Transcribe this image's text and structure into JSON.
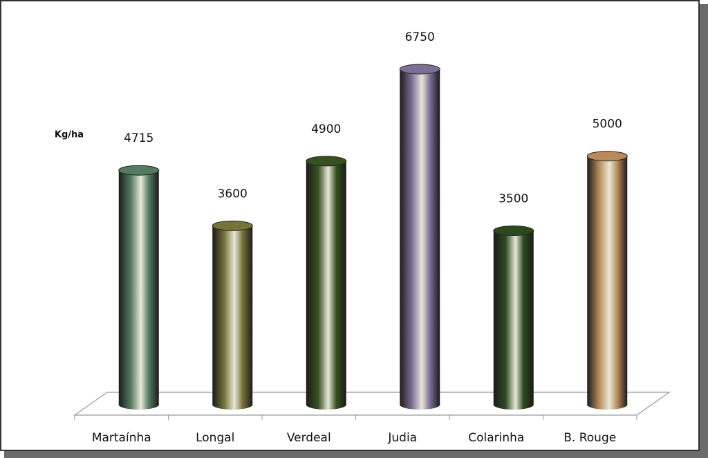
{
  "chart_data": {
    "type": "cylinder",
    "y_label": "Kg/ha",
    "categories": [
      "Martaínha",
      "Longal",
      "Verdeal",
      "Judia",
      "Colarinha",
      "B. Rouge"
    ],
    "values": [
      4715,
      3600,
      4900,
      6750,
      3500,
      5000
    ],
    "colors": [
      "#557a62",
      "#77743a",
      "#35511f",
      "#7d6f96",
      "#2a4a1e",
      "#b88b5a"
    ]
  }
}
